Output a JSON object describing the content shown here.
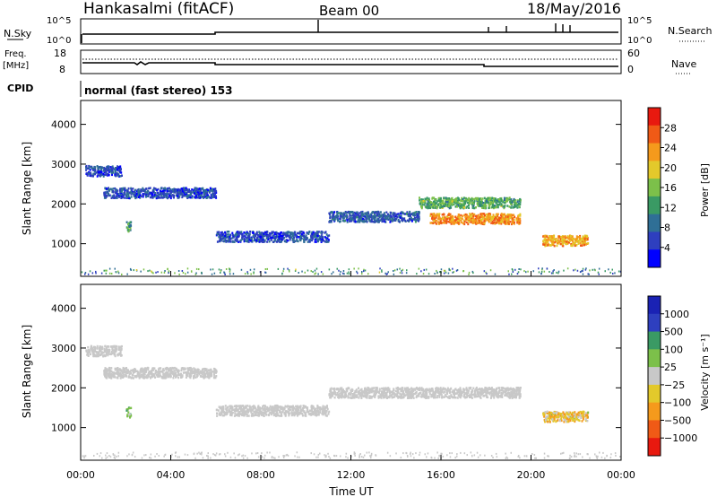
{
  "header": {
    "station": "Hankasalmi (fitACF)",
    "beam": "Beam 00",
    "date": "18/May/2016"
  },
  "panels": {
    "nsky_label": "N.Sky",
    "nsky_ticks": [
      "10^5",
      "10^0"
    ],
    "nsearch_label": "N.Search",
    "nsearch_ticks": [
      "10^5",
      "10^0"
    ],
    "freq_label_1": "Freq.",
    "freq_label_2": "[MHz]",
    "freq_ticks": [
      "18",
      "8"
    ],
    "nave_label": "Nave",
    "nave_ticks": [
      "60",
      "0"
    ],
    "cpid_label": "CPID",
    "cpid_text": "normal (fast stereo) 153"
  },
  "axes": {
    "y_label": "Slant Range [km]",
    "y_ticks": [
      "4000",
      "3000",
      "2000",
      "1000"
    ],
    "x_label": "Time UT",
    "x_ticks": [
      "00:00",
      "04:00",
      "08:00",
      "12:00",
      "16:00",
      "20:00",
      "00:00"
    ]
  },
  "colorbars": {
    "power": {
      "label": "Power [dB]",
      "ticks": [
        "28",
        "24",
        "20",
        "16",
        "12",
        "8",
        "4"
      ],
      "colors": [
        "#0000ff",
        "#2e3fbf",
        "#2f6f96",
        "#3a9a64",
        "#7cc04a",
        "#e3c92b",
        "#f59a1c",
        "#f05a16",
        "#e8190f"
      ]
    },
    "velocity": {
      "label": "Velocity [m s⁻¹]",
      "ticks": [
        "1000",
        "500",
        "100",
        "25",
        "−25",
        "−100",
        "−500",
        "−1000"
      ],
      "colors": [
        "#e8190f",
        "#f05a16",
        "#f59a1c",
        "#e3c92b",
        "#c8c8c8",
        "#7cc04a",
        "#3a9a64",
        "#2e3fbf",
        "#1a22b4"
      ]
    }
  },
  "chart_data": [
    {
      "type": "heatmap",
      "title": "Power",
      "xlabel": "Time UT",
      "ylabel": "Slant Range [km]",
      "xlim": [
        "00:00",
        "24:00"
      ],
      "ylim": [
        180,
        4600
      ],
      "colorbar": {
        "label": "Power [dB]",
        "range": [
          0,
          32
        ]
      },
      "echo_bands": [
        {
          "t_start": 0.2,
          "t_end": 1.8,
          "range_km": 2850,
          "dB": 6
        },
        {
          "t_start": 1.0,
          "t_end": 6.0,
          "range_km": 2300,
          "dB": 6
        },
        {
          "t_start": 6.0,
          "t_end": 11.0,
          "range_km": 1200,
          "dB": 6
        },
        {
          "t_start": 11.0,
          "t_end": 15.0,
          "range_km": 1700,
          "dB": 7
        },
        {
          "t_start": 15.0,
          "t_end": 19.5,
          "range_km": 2050,
          "dB": 14
        },
        {
          "t_start": 15.5,
          "t_end": 19.5,
          "range_km": 1650,
          "dB": 24
        },
        {
          "t_start": 20.5,
          "t_end": 22.5,
          "range_km": 1100,
          "dB": 22
        },
        {
          "t_start": 2.0,
          "t_end": 2.2,
          "range_km": 1450,
          "dB": 12
        }
      ]
    },
    {
      "type": "heatmap",
      "title": "Velocity",
      "xlabel": "Time UT",
      "ylabel": "Slant Range [km]",
      "xlim": [
        "00:00",
        "24:00"
      ],
      "ylim": [
        180,
        4600
      ],
      "colorbar": {
        "label": "Velocity [m s⁻¹]",
        "range": [
          -1000,
          1000
        ]
      },
      "echo_bands": [
        {
          "t_start": 0.2,
          "t_end": 1.8,
          "range_km": 2950,
          "v": 0
        },
        {
          "t_start": 1.0,
          "t_end": 6.0,
          "range_km": 2400,
          "v": 0
        },
        {
          "t_start": 6.0,
          "t_end": 11.0,
          "range_km": 1450,
          "v": 0
        },
        {
          "t_start": 11.0,
          "t_end": 19.5,
          "range_km": 1900,
          "v": 0
        },
        {
          "t_start": 20.5,
          "t_end": 22.5,
          "range_km": 1300,
          "v": -200
        },
        {
          "t_start": 2.0,
          "t_end": 2.2,
          "range_km": 1400,
          "v": 150
        }
      ]
    }
  ]
}
